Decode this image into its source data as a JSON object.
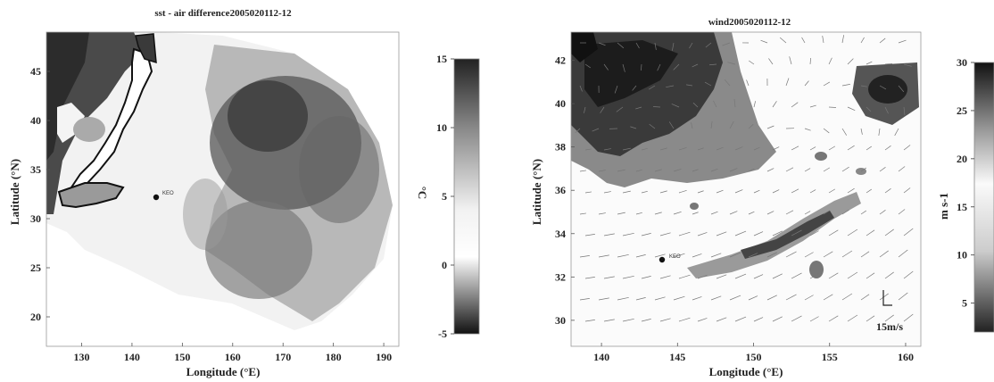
{
  "chart_data": [
    {
      "type": "heatmap",
      "title": "sst - air difference2005020112-12",
      "xlabel": "Longitude (°E)",
      "ylabel": "Latitude (°N)",
      "xticks": [
        130,
        140,
        150,
        160,
        170,
        180,
        190
      ],
      "yticks": [
        20,
        25,
        30,
        35,
        40,
        45
      ],
      "xlim": [
        123,
        193
      ],
      "ylim": [
        17,
        49
      ],
      "annotation": "KEO",
      "colorbar": {
        "label": "°C",
        "ticks": [
          15,
          10,
          5,
          0,
          -5
        ],
        "range": [
          -5,
          15
        ]
      }
    },
    {
      "type": "heatmap",
      "title": "wind2005020112-12",
      "xlabel": "Longitude (°E)",
      "ylabel": "Latitude (°N)",
      "xticks": [
        140,
        145,
        150,
        155,
        160
      ],
      "yticks": [
        30,
        32,
        34,
        36,
        38,
        40,
        42
      ],
      "xlim": [
        138,
        161
      ],
      "ylim": [
        28.8,
        43.3
      ],
      "annotation": "KEO",
      "scale_label": "15m/s",
      "colorbar": {
        "label": "m s-1",
        "ticks": [
          30,
          25,
          20,
          15,
          10,
          5
        ],
        "range": [
          2,
          30
        ]
      }
    }
  ]
}
